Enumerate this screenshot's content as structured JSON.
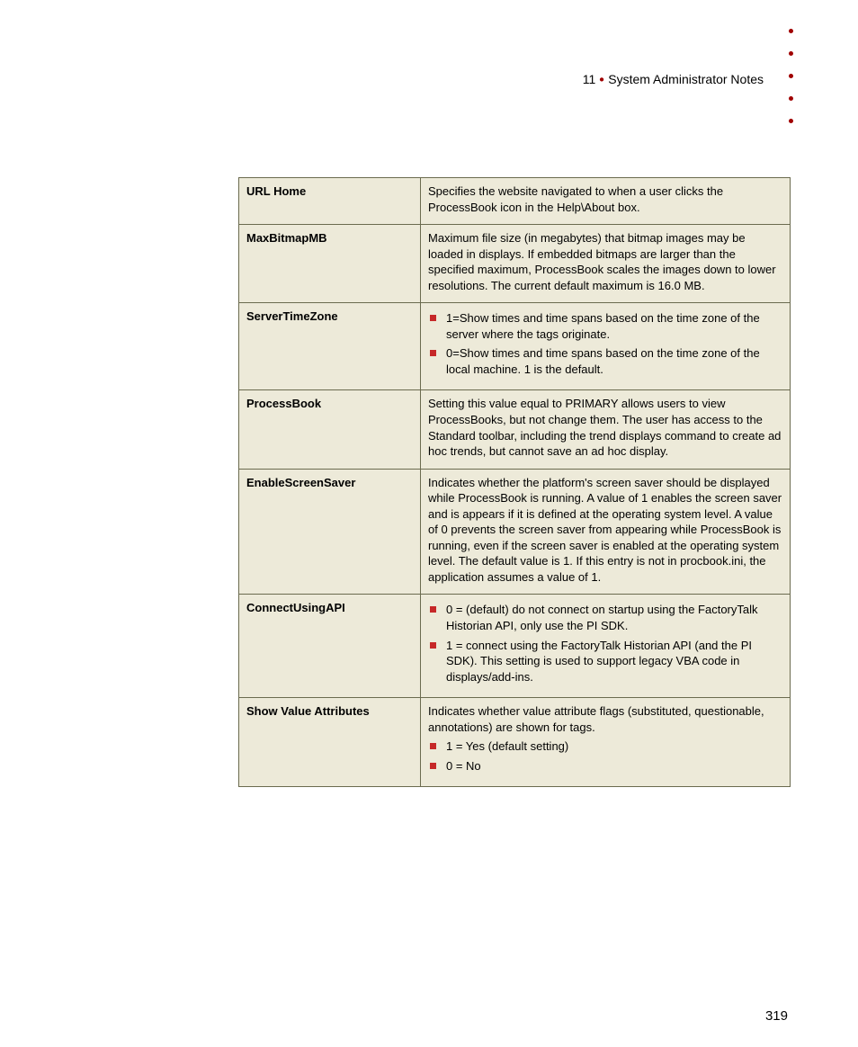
{
  "header": {
    "chapter_number": "11",
    "chapter_title": "System Administrator Notes"
  },
  "dots": {
    "count": 5
  },
  "table": {
    "rows": [
      {
        "key": "URL Home",
        "type": "text",
        "text": "Specifies the website navigated to when a user clicks the ProcessBook icon in the Help\\About box."
      },
      {
        "key": "MaxBitmapMB",
        "type": "text",
        "text": "Maximum file size (in megabytes) that bitmap images may be loaded in displays. If embedded bitmaps are larger than the specified maximum, ProcessBook scales the images down to lower resolutions. The current default maximum is 16.0 MB."
      },
      {
        "key": "ServerTimeZone",
        "type": "list",
        "items": [
          "1=Show times and time spans based on the time zone of the server where the tags originate.",
          "0=Show times and time spans based on the time zone of the local machine. 1 is the default."
        ]
      },
      {
        "key": "ProcessBook",
        "type": "text",
        "text": "Setting this value equal to PRIMARY allows users to view ProcessBooks, but not change them. The user has access to the Standard toolbar, including the trend displays command to create ad hoc trends, but cannot save an ad hoc display."
      },
      {
        "key": "EnableScreenSaver",
        "type": "text",
        "text": "Indicates whether the platform's screen saver should be displayed while ProcessBook is running. A value of 1 enables the screen saver and is appears if it is defined at the operating system level. A value of 0 prevents the screen saver from appearing while ProcessBook is running, even if the screen saver is enabled at the operating system level. The default value is 1. If this entry is not in procbook.ini, the application assumes a value of 1."
      },
      {
        "key": "ConnectUsingAPI",
        "type": "list",
        "items": [
          "0 = (default) do not connect on startup using the FactoryTalk Historian API, only use the PI SDK.",
          "1 = connect using the FactoryTalk Historian API (and the PI SDK). This setting is used to support legacy VBA code in displays/add-ins."
        ]
      },
      {
        "key": "Show Value Attributes",
        "type": "text_then_list",
        "text": "Indicates whether value attribute flags (substituted, questionable, annotations) are shown for tags.",
        "items": [
          "1 = Yes (default setting)",
          "0 = No"
        ]
      }
    ]
  },
  "page_number": "319",
  "colors": {
    "table_bg": "#edead9",
    "table_border": "#6b6b4f",
    "bullet": "#c62828",
    "dot": "#a00000",
    "text": "#000000"
  }
}
